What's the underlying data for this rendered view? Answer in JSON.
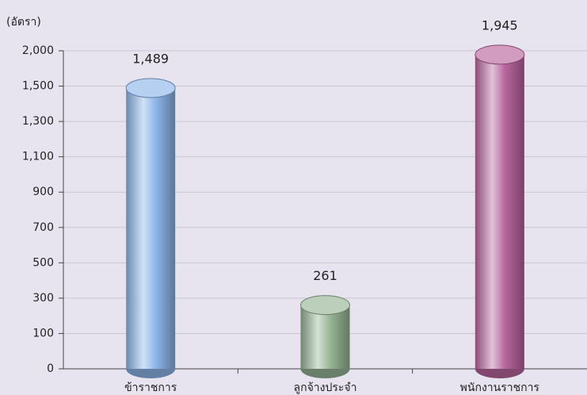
{
  "chart_data": {
    "type": "bar",
    "y_label": "(อัตรา)",
    "categories": [
      "ข้าราชการ",
      "ลูกจ้างประจำ",
      "พนักงานราชการ"
    ],
    "values": [
      1489,
      261,
      1945
    ],
    "value_labels": [
      "1,489",
      "261",
      "1,945"
    ],
    "colors": [
      "#8db6ea",
      "#98b596",
      "#b9669f"
    ],
    "ylim": [
      0,
      2000
    ],
    "yticks": [
      0,
      100,
      300,
      500,
      700,
      900,
      {
        "value": 1100,
        "label": "1,100"
      },
      {
        "value": 1300,
        "label": "1,300"
      },
      {
        "value": 1500,
        "label": "1,500"
      },
      {
        "value": 2000,
        "label": "2,000"
      }
    ],
    "grid": true
  }
}
